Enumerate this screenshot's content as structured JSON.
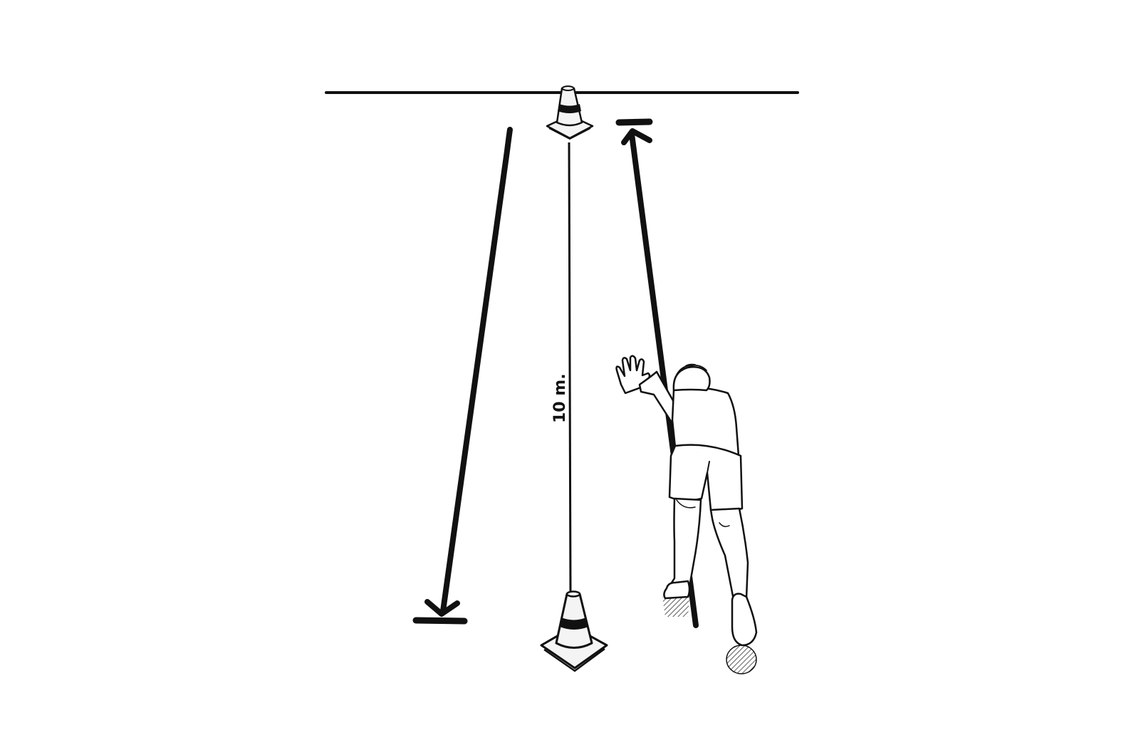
{
  "diagram": {
    "distance_label": "10 m.",
    "colors": {
      "ink": "#111111",
      "background": "#ffffff",
      "cone_fill": "#f4f4f4",
      "shadow": "#444444"
    },
    "icons": [
      "traffic-cone-icon",
      "runner-figure",
      "arrow-down-icon",
      "arrow-up-icon"
    ]
  }
}
